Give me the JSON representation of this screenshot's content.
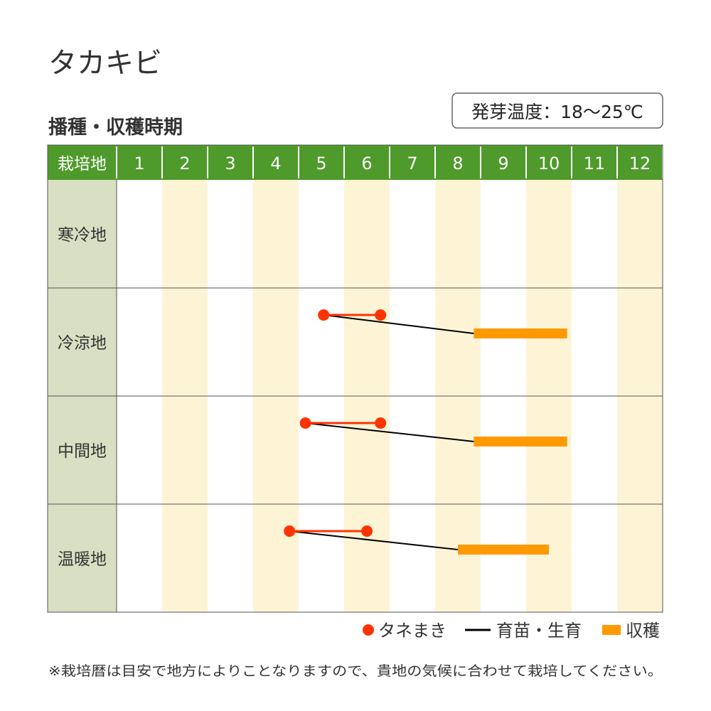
{
  "title": "タカキビ",
  "subtitle": "播種・収穫時期",
  "badge": "発芽温度：18～25℃",
  "note": "※栽培暦は目安で地方によりことなりますので、貴地の気候に合わせて栽培してください。",
  "colors": {
    "header": "#4e9a2a",
    "label_col": "#d8dfc3",
    "stripe": "#fdf4d6",
    "sowing": "#ff3300",
    "growing": "#000000",
    "harvest": "#ff9900"
  },
  "chart_data": {
    "type": "table",
    "header_label": "栽培地",
    "months": [
      "1",
      "2",
      "3",
      "4",
      "5",
      "6",
      "7",
      "8",
      "9",
      "10",
      "11",
      "12"
    ],
    "x_unit": "month (fractional position, 1 = start of January)",
    "legend": {
      "sowing": "タネまき",
      "growing": "育苗・生育",
      "harvest": "収穫",
      "placement": "bottom-right"
    },
    "rows": [
      {
        "region": "寒冷地",
        "sowing": null,
        "harvest": null
      },
      {
        "region": "冷涼地",
        "sowing": [
          5.55,
          6.8
        ],
        "harvest": [
          8.85,
          10.9
        ]
      },
      {
        "region": "中間地",
        "sowing": [
          5.15,
          6.8
        ],
        "harvest": [
          8.85,
          10.9
        ]
      },
      {
        "region": "温暖地",
        "sowing": [
          4.8,
          6.5
        ],
        "harvest": [
          8.5,
          10.5
        ]
      }
    ]
  }
}
